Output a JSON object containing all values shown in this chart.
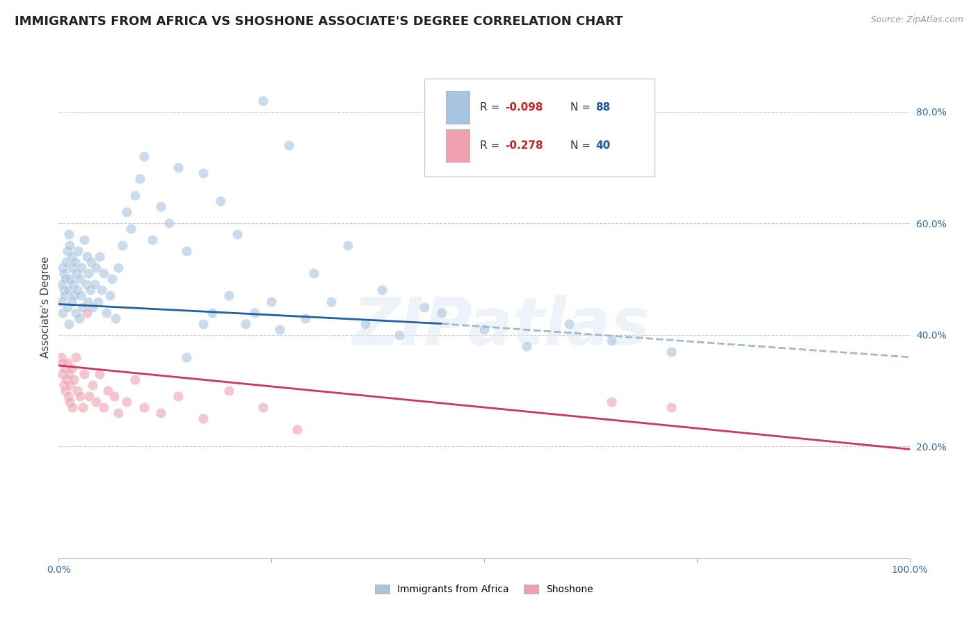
{
  "title": "IMMIGRANTS FROM AFRICA VS SHOSHONE ASSOCIATE'S DEGREE CORRELATION CHART",
  "source": "Source: ZipAtlas.com",
  "ylabel": "Associate's Degree",
  "legend_label1": "Immigrants from Africa",
  "legend_label2": "Shoshone",
  "blue_color": "#a8c4e0",
  "blue_line_color": "#2060a0",
  "pink_color": "#f0a0b0",
  "pink_line_color": "#cc3366",
  "dashed_line_color": "#a0b8d0",
  "watermark": "ZIPatlas",
  "xmin": 0.0,
  "xmax": 1.0,
  "ymin": 0.0,
  "ymax": 0.9,
  "yticks": [
    0.2,
    0.4,
    0.6,
    0.8
  ],
  "ytick_labels": [
    "20.0%",
    "40.0%",
    "60.0%",
    "80.0%"
  ],
  "blue_dots_x": [
    0.003,
    0.004,
    0.005,
    0.005,
    0.006,
    0.006,
    0.007,
    0.008,
    0.009,
    0.01,
    0.01,
    0.011,
    0.012,
    0.012,
    0.013,
    0.014,
    0.015,
    0.015,
    0.016,
    0.017,
    0.018,
    0.019,
    0.02,
    0.021,
    0.022,
    0.023,
    0.024,
    0.025,
    0.026,
    0.027,
    0.028,
    0.03,
    0.032,
    0.033,
    0.034,
    0.035,
    0.037,
    0.038,
    0.04,
    0.042,
    0.044,
    0.046,
    0.048,
    0.05,
    0.053,
    0.056,
    0.06,
    0.063,
    0.067,
    0.07,
    0.075,
    0.08,
    0.085,
    0.09,
    0.095,
    0.1,
    0.11,
    0.12,
    0.13,
    0.14,
    0.15,
    0.17,
    0.19,
    0.21,
    0.24,
    0.27,
    0.3,
    0.34,
    0.38,
    0.43,
    0.17,
    0.2,
    0.23,
    0.26,
    0.29,
    0.32,
    0.36,
    0.4,
    0.45,
    0.5,
    0.55,
    0.6,
    0.65,
    0.72,
    0.15,
    0.18,
    0.22,
    0.25
  ],
  "blue_dots_y": [
    0.46,
    0.49,
    0.52,
    0.44,
    0.48,
    0.51,
    0.47,
    0.5,
    0.53,
    0.45,
    0.55,
    0.48,
    0.58,
    0.42,
    0.56,
    0.5,
    0.54,
    0.46,
    0.52,
    0.49,
    0.47,
    0.53,
    0.44,
    0.51,
    0.48,
    0.55,
    0.43,
    0.5,
    0.47,
    0.52,
    0.45,
    0.57,
    0.49,
    0.54,
    0.46,
    0.51,
    0.48,
    0.53,
    0.45,
    0.49,
    0.52,
    0.46,
    0.54,
    0.48,
    0.51,
    0.44,
    0.47,
    0.5,
    0.43,
    0.52,
    0.56,
    0.62,
    0.59,
    0.65,
    0.68,
    0.72,
    0.57,
    0.63,
    0.6,
    0.7,
    0.55,
    0.69,
    0.64,
    0.58,
    0.82,
    0.74,
    0.51,
    0.56,
    0.48,
    0.45,
    0.42,
    0.47,
    0.44,
    0.41,
    0.43,
    0.46,
    0.42,
    0.4,
    0.44,
    0.41,
    0.38,
    0.42,
    0.39,
    0.37,
    0.36,
    0.44,
    0.42,
    0.46
  ],
  "pink_dots_x": [
    0.003,
    0.004,
    0.005,
    0.006,
    0.007,
    0.008,
    0.009,
    0.01,
    0.011,
    0.012,
    0.013,
    0.014,
    0.015,
    0.016,
    0.018,
    0.02,
    0.022,
    0.025,
    0.028,
    0.03,
    0.033,
    0.036,
    0.04,
    0.044,
    0.048,
    0.053,
    0.058,
    0.065,
    0.07,
    0.08,
    0.09,
    0.1,
    0.12,
    0.14,
    0.17,
    0.2,
    0.24,
    0.28,
    0.65,
    0.72
  ],
  "pink_dots_y": [
    0.36,
    0.33,
    0.35,
    0.31,
    0.34,
    0.3,
    0.32,
    0.35,
    0.29,
    0.33,
    0.28,
    0.31,
    0.34,
    0.27,
    0.32,
    0.36,
    0.3,
    0.29,
    0.27,
    0.33,
    0.44,
    0.29,
    0.31,
    0.28,
    0.33,
    0.27,
    0.3,
    0.29,
    0.26,
    0.28,
    0.32,
    0.27,
    0.26,
    0.29,
    0.25,
    0.3,
    0.27,
    0.23,
    0.28,
    0.27
  ],
  "blue_line_x0": 0.0,
  "blue_line_x1": 0.45,
  "blue_line_y0": 0.455,
  "blue_line_y1": 0.42,
  "dashed_line_x0": 0.45,
  "dashed_line_x1": 1.0,
  "dashed_line_y0": 0.42,
  "dashed_line_y1": 0.36,
  "pink_line_x0": 0.0,
  "pink_line_x1": 1.0,
  "pink_line_y0": 0.345,
  "pink_line_y1": 0.195,
  "background_color": "#ffffff",
  "grid_color": "#cccccc",
  "title_fontsize": 13,
  "axis_label_fontsize": 11,
  "tick_fontsize": 10,
  "dot_size": 110,
  "dot_alpha": 0.6,
  "legend_box_color": "#ffffff",
  "legend_border_color": "#cccccc",
  "r1_text": "R = ",
  "r1_val": "-0.098",
  "n1_text": "N = ",
  "n1_val": "88",
  "r2_text": "R = ",
  "r2_val": "-0.278",
  "n2_text": "N = ",
  "n2_val": "40",
  "val_color": "#cc2222",
  "n_color": "#2255aa"
}
